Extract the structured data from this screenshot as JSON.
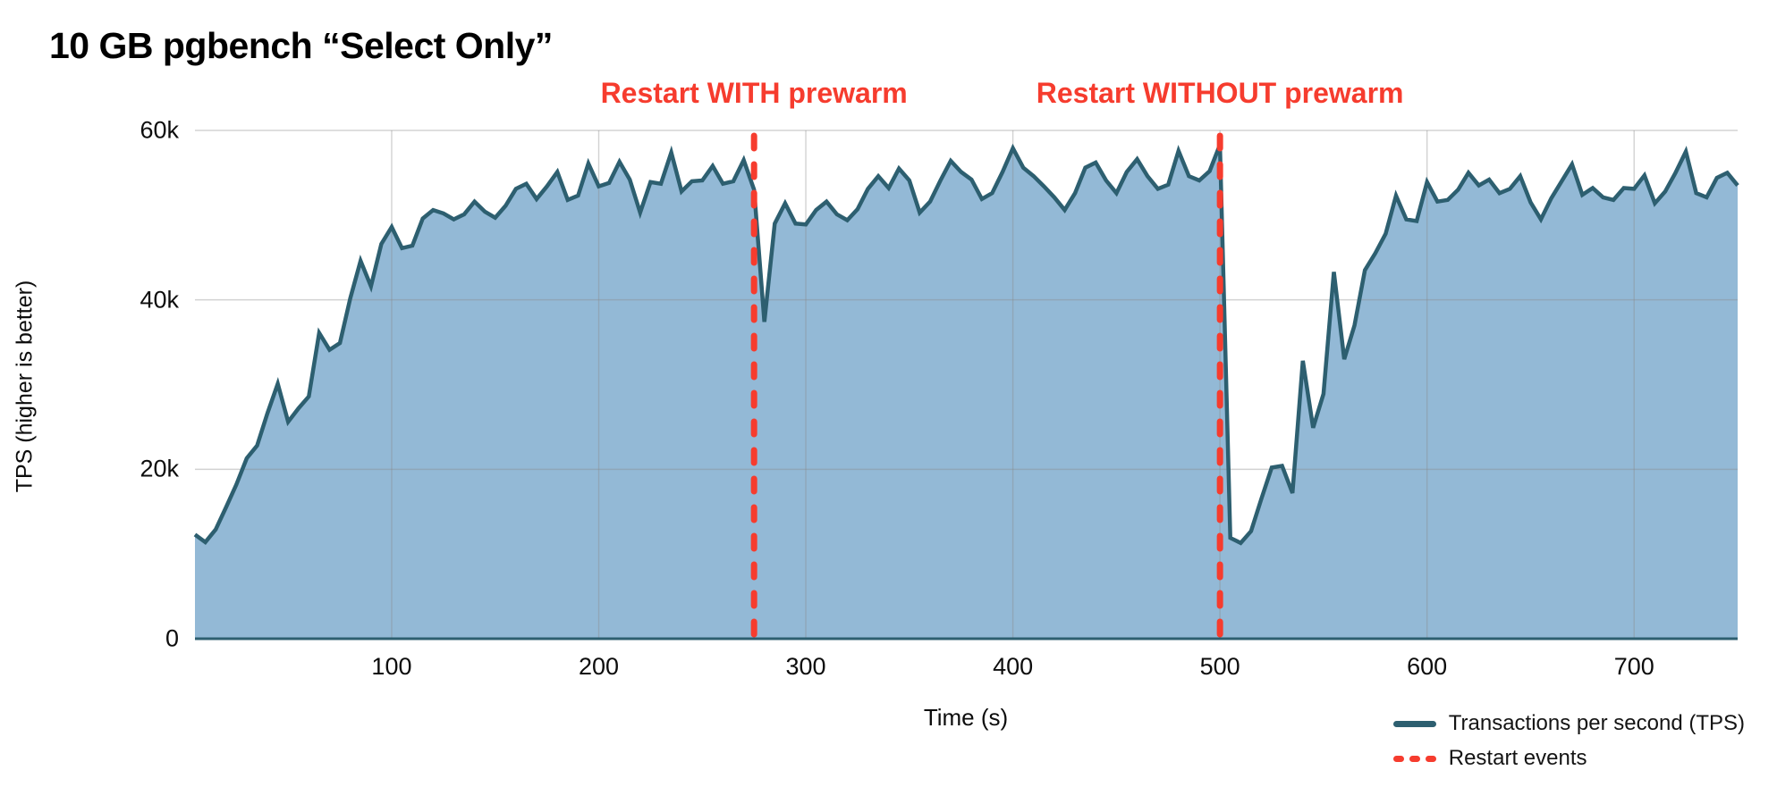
{
  "title": "10 GB pgbench “Select Only”",
  "colors": {
    "line": "#2d5f70",
    "fill": "#93b9d6",
    "restart": "#f63c2e",
    "grid": "rgba(138,138,138,0.38)",
    "text": "#0d0d0d"
  },
  "chart_data": {
    "type": "area",
    "title": "10 GB pgbench “Select Only”",
    "xlabel": "Time (s)",
    "ylabel": "TPS (higher is better)",
    "xlim": [
      5,
      750
    ],
    "ylim": [
      0,
      60000
    ],
    "grid": true,
    "legend_position": "bottom-right",
    "x_ticks": [
      100,
      200,
      300,
      400,
      500,
      600,
      700
    ],
    "y_ticks": [
      {
        "value": 0,
        "label": "0"
      },
      {
        "value": 20000,
        "label": "20k"
      },
      {
        "value": 40000,
        "label": "40k"
      },
      {
        "value": 60000,
        "label": "60k"
      }
    ],
    "series": [
      {
        "name": "Transactions per second (TPS)",
        "x_start": 5,
        "x_step": 5,
        "values": [
          12300,
          11400,
          12900,
          15500,
          18200,
          21300,
          22800,
          26600,
          30100,
          25600,
          27200,
          28600,
          36100,
          34100,
          34900,
          40200,
          44600,
          41600,
          46600,
          48600,
          46100,
          46400,
          49600,
          50600,
          50200,
          49500,
          50100,
          51600,
          50400,
          49700,
          51100,
          53100,
          53700,
          51900,
          53400,
          55100,
          51800,
          52300,
          56100,
          53400,
          53800,
          56300,
          54200,
          50300,
          53900,
          53700,
          57400,
          52800,
          54000,
          54100,
          55800,
          53700,
          54000,
          56500,
          53000,
          37400,
          49000,
          51400,
          49000,
          48900,
          50600,
          51600,
          50100,
          49400,
          50700,
          53100,
          54600,
          53200,
          55500,
          54100,
          50300,
          51600,
          54100,
          56400,
          55100,
          54200,
          51900,
          52600,
          55100,
          57900,
          55600,
          54600,
          53400,
          52100,
          50600,
          52600,
          55600,
          56200,
          54100,
          52600,
          55100,
          56600,
          54600,
          53100,
          53600,
          57600,
          54600,
          54100,
          55200,
          58300,
          11900,
          11300,
          12700,
          16500,
          20200,
          20400,
          17200,
          32800,
          24900,
          28900,
          43300,
          33000,
          37000,
          43500,
          45500,
          47800,
          52300,
          49500,
          49300,
          53900,
          51600,
          51800,
          53000,
          55000,
          53500,
          54200,
          52600,
          53100,
          54600,
          51500,
          49500,
          52000,
          54000,
          56000,
          52400,
          53200,
          52100,
          51800,
          53200,
          53100,
          54700,
          51400,
          52800,
          55000,
          57500,
          52600,
          52100,
          54400,
          55000,
          53500
        ]
      }
    ],
    "restart_events": [
      {
        "time_s": 275,
        "label": "Restart WITH prewarm"
      },
      {
        "time_s": 500,
        "label": "Restart WITHOUT prewarm"
      }
    ],
    "legend": [
      {
        "label": "Transactions per second (TPS)",
        "swatch": "solid-line"
      },
      {
        "label": "Restart events",
        "swatch": "dashed-line"
      }
    ]
  }
}
